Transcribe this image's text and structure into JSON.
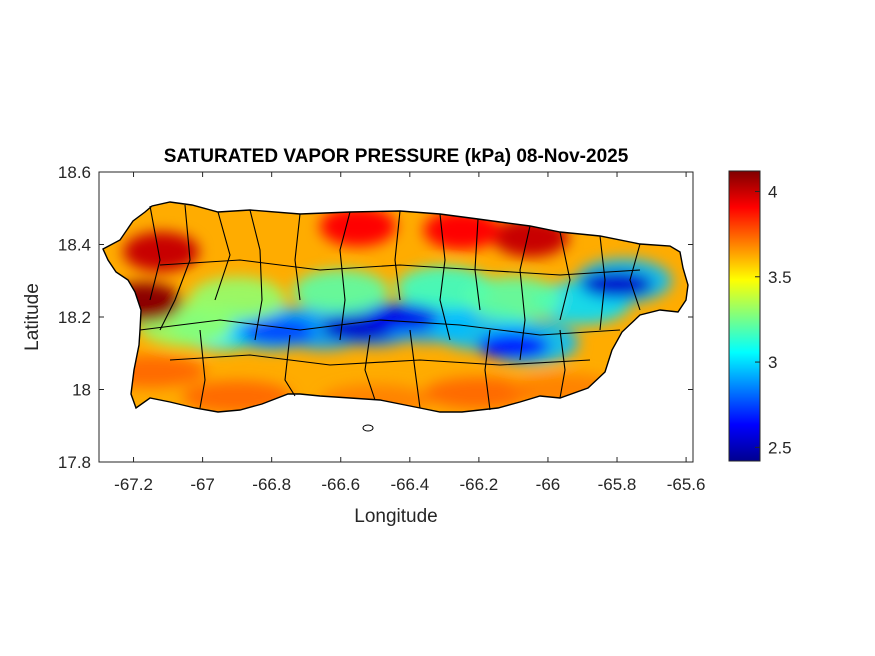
{
  "chart_data": {
    "type": "heatmap",
    "title": "SATURATED VAPOR PRESSURE (kPa) 08-Nov-2025",
    "xlabel": "Longitude",
    "ylabel": "Latitude",
    "xlim": [
      -67.3,
      -65.58
    ],
    "ylim": [
      17.8,
      18.6
    ],
    "x_ticks": [
      -67.2,
      -67,
      -66.8,
      -66.6,
      -66.4,
      -66.2,
      -66,
      -65.8,
      -65.6
    ],
    "x_tick_labels": [
      "-67.2",
      "-67",
      "-66.8",
      "-66.6",
      "-66.4",
      "-66.2",
      "-66",
      "-65.8",
      "-65.6"
    ],
    "y_ticks": [
      17.8,
      18,
      18.2,
      18.4,
      18.6
    ],
    "y_tick_labels": [
      "17.8",
      "18",
      "18.2",
      "18.4",
      "18.6"
    ],
    "colorbar": {
      "colormap": "jet",
      "range": [
        2.42,
        4.12
      ],
      "ticks": [
        2.5,
        3,
        3.5,
        4
      ],
      "tick_labels": [
        "2.5",
        "3",
        "3.5",
        "4"
      ]
    },
    "grid": false,
    "high_regions": [
      {
        "lon": -67.17,
        "lat": 18.24,
        "value": 4.1
      },
      {
        "lon": -67.12,
        "lat": 18.38,
        "value": 4.0
      },
      {
        "lon": -66.05,
        "lat": 18.42,
        "value": 4.0
      },
      {
        "lon": -66.25,
        "lat": 18.44,
        "value": 3.9
      },
      {
        "lon": -66.55,
        "lat": 18.45,
        "value": 3.9
      }
    ],
    "low_regions": [
      {
        "lon": -66.55,
        "lat": 18.17,
        "value": 2.55
      },
      {
        "lon": -66.42,
        "lat": 18.2,
        "value": 2.6
      },
      {
        "lon": -66.1,
        "lat": 18.12,
        "value": 2.65
      },
      {
        "lon": -65.8,
        "lat": 18.29,
        "value": 2.55
      },
      {
        "lon": -66.78,
        "lat": 18.16,
        "value": 2.75
      }
    ]
  }
}
